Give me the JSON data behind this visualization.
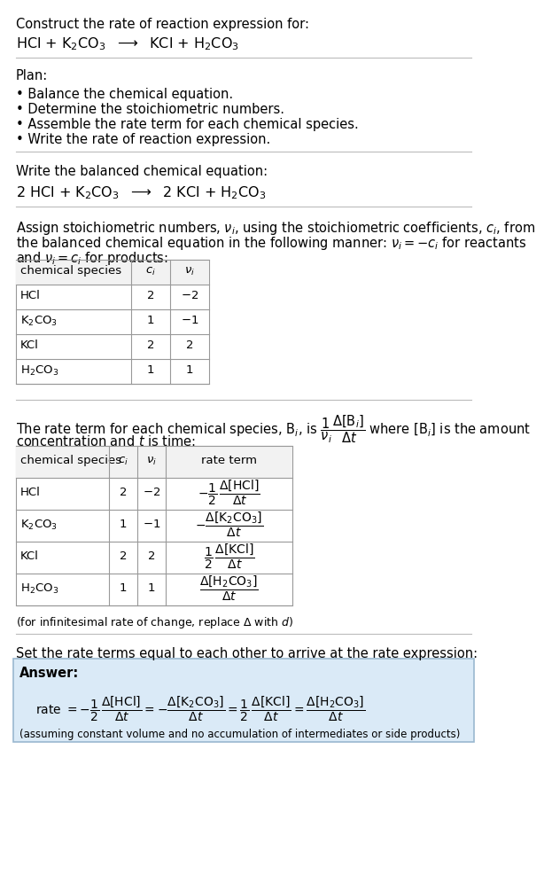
{
  "bg_color": "#ffffff",
  "text_color": "#000000",
  "answer_box_color": "#daeaf7",
  "answer_box_edge": "#9ab8d0",
  "title_line1": "Construct the rate of reaction expression for:",
  "reaction_unbalanced": "HCl + K$_2$CO$_3$  $\\longrightarrow$  KCl + H$_2$CO$_3$",
  "plan_header": "Plan:",
  "plan_items": [
    "• Balance the chemical equation.",
    "• Determine the stoichiometric numbers.",
    "• Assemble the rate term for each chemical species.",
    "• Write the rate of reaction expression."
  ],
  "balanced_header": "Write the balanced chemical equation:",
  "reaction_balanced": "2 HCl + K$_2$CO$_3$  $\\longrightarrow$  2 KCl + H$_2$CO$_3$",
  "stoich_intro_1": "Assign stoichiometric numbers, $\\nu_i$, using the stoichiometric coefficients, $c_i$, from",
  "stoich_intro_2": "the balanced chemical equation in the following manner: $\\nu_i = -c_i$ for reactants",
  "stoich_intro_3": "and $\\nu_i = c_i$ for products:",
  "table1_headers": [
    "chemical species",
    "$c_i$",
    "$\\nu_i$"
  ],
  "table1_rows": [
    [
      "HCl",
      "2",
      "$-2$"
    ],
    [
      "K$_2$CO$_3$",
      "1",
      "$-1$"
    ],
    [
      "KCl",
      "2",
      "2"
    ],
    [
      "H$_2$CO$_3$",
      "1",
      "1"
    ]
  ],
  "rate_intro_1": "The rate term for each chemical species, B$_i$, is $\\dfrac{1}{\\nu_i}\\dfrac{\\Delta[\\mathrm{B}_i]}{\\Delta t}$ where [B$_i$] is the amount",
  "rate_intro_2": "concentration and $t$ is time:",
  "table2_headers": [
    "chemical species",
    "$c_i$",
    "$\\nu_i$",
    "rate term"
  ],
  "table2_rows": [
    [
      "HCl",
      "2",
      "$-2$",
      "$-\\dfrac{1}{2}\\,\\dfrac{\\Delta[\\mathrm{HCl}]}{\\Delta t}$"
    ],
    [
      "K$_2$CO$_3$",
      "1",
      "$-1$",
      "$-\\dfrac{\\Delta[\\mathrm{K_2CO_3}]}{\\Delta t}$"
    ],
    [
      "KCl",
      "2",
      "2",
      "$\\dfrac{1}{2}\\,\\dfrac{\\Delta[\\mathrm{KCl}]}{\\Delta t}$"
    ],
    [
      "H$_2$CO$_3$",
      "1",
      "1",
      "$\\dfrac{\\Delta[\\mathrm{H_2CO_3}]}{\\Delta t}$"
    ]
  ],
  "infinitesimal_note": "(for infinitesimal rate of change, replace $\\Delta$ with $d$)",
  "set_equal_text": "Set the rate terms equal to each other to arrive at the rate expression:",
  "answer_label": "Answer:",
  "answer_rate": "rate $= -\\dfrac{1}{2}\\,\\dfrac{\\Delta[\\mathrm{HCl}]}{\\Delta t} = -\\dfrac{\\Delta[\\mathrm{K_2CO_3}]}{\\Delta t} = \\dfrac{1}{2}\\,\\dfrac{\\Delta[\\mathrm{KCl}]}{\\Delta t} = \\dfrac{\\Delta[\\mathrm{H_2CO_3}]}{\\Delta t}$",
  "answer_note": "(assuming constant volume and no accumulation of intermediates or side products)",
  "fs": 10.5,
  "fs_small": 9.5,
  "fs_note": 9.0
}
